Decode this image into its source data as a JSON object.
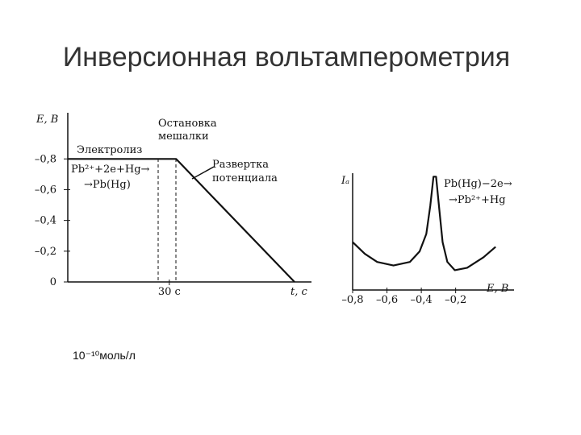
{
  "title": "Инверсионная вольтамперометрия",
  "note": "10⁻¹⁰моль/л",
  "chart_data": [
    {
      "type": "line",
      "ylabel": "E, B",
      "xlabel": "t, с",
      "annotations": [
        "Остановка",
        "мешалки",
        "Электролиз",
        "Pb²⁺+2e+Hg→",
        "→Pb(Hg)",
        "Развертка",
        "потенциала"
      ],
      "x": [
        0,
        32,
        67
      ],
      "series": [
        {
          "values": [
            -0.8,
            -0.8,
            0
          ],
          "color": "#111111"
        }
      ],
      "xlim": [
        0,
        72
      ],
      "ylim": [
        0,
        -1.1
      ],
      "xticks": [
        {
          "value": 30,
          "label": "30 с"
        }
      ],
      "yticks": [
        {
          "value": -0.8,
          "label": "–0,8"
        },
        {
          "value": -0.6,
          "label": "–0,6"
        },
        {
          "value": -0.4,
          "label": "–0,4"
        },
        {
          "value": -0.2,
          "label": "–0,2"
        },
        0
      ]
    },
    {
      "type": "line",
      "ylabel": "Iₐ",
      "xlabel": "E, B",
      "annotations": [
        "Pb(Hg)−2e→",
        "→Pb²⁺+Hg"
      ],
      "x": [
        -0.8,
        -0.729,
        -0.657,
        -0.562,
        -0.467,
        -0.41,
        -0.371,
        -0.348,
        -0.329,
        -0.314,
        -0.295,
        -0.276,
        -0.248,
        -0.205,
        -0.133,
        -0.038,
        0.033
      ],
      "series": [
        {
          "values": [
            0.41,
            0.31,
            0.24,
            0.21,
            0.24,
            0.33,
            0.48,
            0.72,
            0.97,
            0.97,
            0.69,
            0.41,
            0.24,
            0.17,
            0.19,
            0.28,
            0.37
          ],
          "color": "#111111"
        }
      ],
      "xlim": [
        -0.8,
        0.14
      ],
      "ylim": [
        0,
        1
      ],
      "xticks": [
        {
          "value": -0.8,
          "label": "–0,8"
        },
        {
          "value": -0.6,
          "label": "–0,6"
        },
        {
          "value": -0.4,
          "label": "–0,4"
        },
        {
          "value": -0.2,
          "label": "–0,2"
        }
      ]
    }
  ]
}
